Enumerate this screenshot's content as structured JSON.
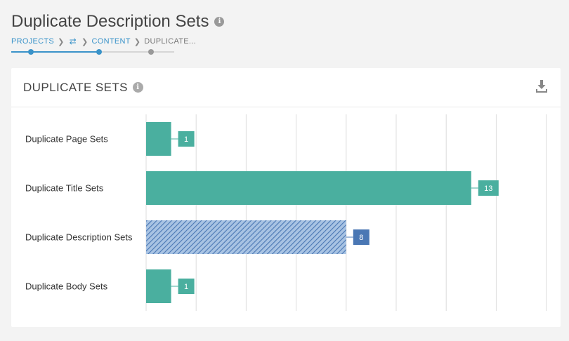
{
  "page": {
    "title": "Duplicate Description Sets",
    "breadcrumb": {
      "projects": "PROJECTS",
      "content": "CONTENT",
      "current": "DUPLICATE..."
    }
  },
  "card": {
    "title": "DUPLICATE SETS"
  },
  "icons": {
    "info": "info-icon",
    "swap": "swap-icon",
    "chevron": "chevron-right-icon",
    "download": "download-icon"
  },
  "colors": {
    "accent": "#3a93c9",
    "teal": "#4aaf9f",
    "selected": "#4a77b4",
    "hatch_bg": "#a8c3e3"
  },
  "chart_data": {
    "type": "bar",
    "orientation": "horizontal",
    "categories": [
      "Duplicate Page Sets",
      "Duplicate Title Sets",
      "Duplicate Description Sets",
      "Duplicate Body Sets"
    ],
    "values": [
      1,
      13,
      8,
      1
    ],
    "selected_category": "Duplicate Description Sets",
    "xlim": [
      0,
      16
    ],
    "grid": true
  }
}
